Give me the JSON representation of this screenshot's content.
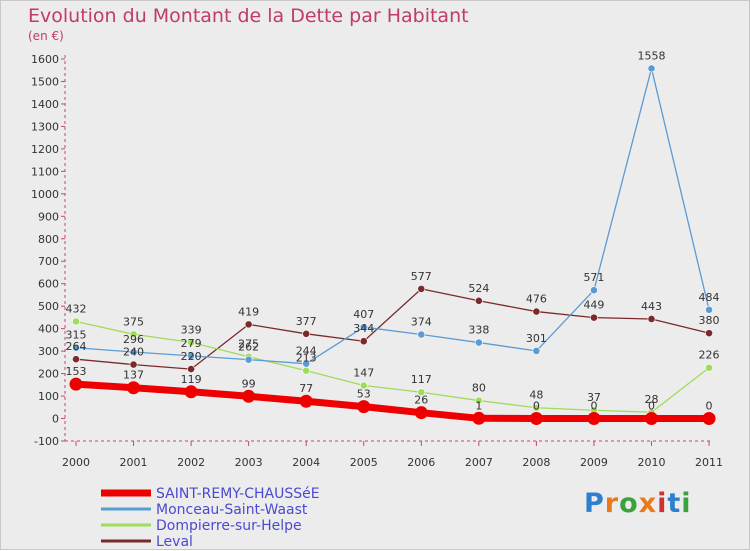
{
  "header": {
    "title": "Evolution du Montant de la Dette par Habitant",
    "subtitle": "(en €)"
  },
  "logo": {
    "letters": [
      "P",
      "r",
      "o",
      "x",
      "i",
      "t",
      "i"
    ],
    "colors": [
      "#2f7fd0",
      "#e87a1e",
      "#3aa23a",
      "#e87a1e",
      "#d03030",
      "#2f7fd0",
      "#3aa23a"
    ]
  },
  "chart_data": {
    "type": "line",
    "title": "Evolution du Montant de la Dette par Habitant",
    "ylabel": "(en €)",
    "xlabel": "",
    "categories": [
      "2000",
      "2001",
      "2002",
      "2003",
      "2004",
      "2005",
      "2006",
      "2007",
      "2008",
      "2009",
      "2010",
      "2011"
    ],
    "ylim": [
      -100,
      1600
    ],
    "yticks": [
      -100,
      0,
      100,
      200,
      300,
      400,
      500,
      600,
      700,
      800,
      900,
      1000,
      1100,
      1200,
      1300,
      1400,
      1500,
      1600
    ],
    "grid": false,
    "legend_position": "bottom-left",
    "series": [
      {
        "name": "SAINT-REMY-CHAUSSéE",
        "color": "#ee0000",
        "values": [
          153,
          137,
          119,
          99,
          77,
          53,
          26,
          1,
          0,
          0,
          0,
          0
        ],
        "labels": [
          "153",
          "137",
          "119",
          "99",
          "77",
          "53",
          "26",
          "1",
          "0",
          "0",
          "0",
          "0"
        ]
      },
      {
        "name": "Monceau-Saint-Waast",
        "color": "#5b9bd5",
        "values": [
          315,
          296,
          279,
          262,
          244,
          407,
          374,
          338,
          301,
          571,
          1558,
          484
        ],
        "labels": [
          "315",
          "296",
          "279",
          "262",
          "244",
          "407",
          "374",
          "338",
          "301",
          "571",
          "1558",
          "484"
        ]
      },
      {
        "name": "Dompierre-sur-Helpe",
        "color": "#9edc5a",
        "values": [
          432,
          375,
          339,
          275,
          213,
          147,
          117,
          80,
          48,
          37,
          28,
          226
        ],
        "labels": [
          "432",
          "375",
          "339",
          "275",
          "213",
          "147",
          "117",
          "80",
          "48",
          "37",
          "28",
          "226"
        ]
      },
      {
        "name": "Leval",
        "color": "#7a2a2a",
        "values": [
          264,
          240,
          220,
          419,
          377,
          344,
          577,
          524,
          476,
          449,
          443,
          380
        ],
        "labels": [
          "264",
          "240",
          "220",
          "419",
          "377",
          "344",
          "577",
          "524",
          "476",
          "449",
          "443",
          "380"
        ]
      }
    ]
  }
}
